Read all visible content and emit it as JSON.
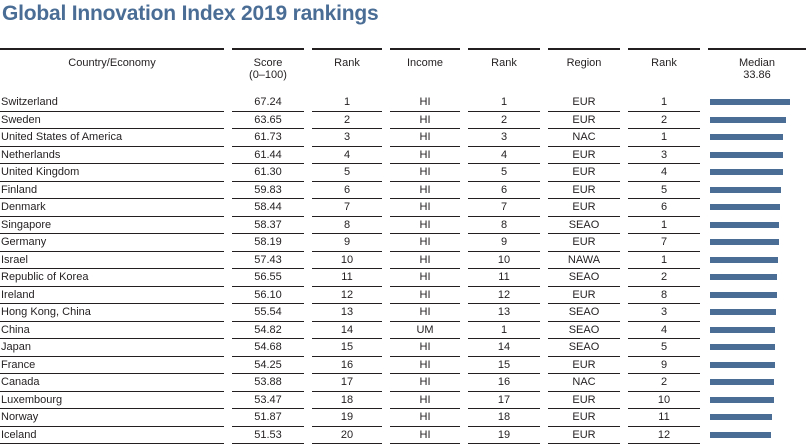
{
  "title": "Global Innovation Index 2019 rankings",
  "headers": {
    "country": "Country/Economy",
    "score_line1": "Score",
    "score_line2": "(0–100)",
    "rank": "Rank",
    "income": "Income",
    "rank_income": "Rank",
    "region": "Region",
    "rank_region": "Rank",
    "median_label": "Median",
    "median_value": "33.86"
  },
  "colors": {
    "title": "#4a6d96",
    "bar": "#4a6d96",
    "rules": "#231f20"
  },
  "chart_data": {
    "type": "bar",
    "median": 33.86,
    "categories": [
      "Switzerland",
      "Sweden",
      "United States of America",
      "Netherlands",
      "United Kingdom",
      "Finland",
      "Denmark",
      "Singapore",
      "Germany",
      "Israel",
      "Republic of Korea",
      "Ireland",
      "Hong Kong, China",
      "China",
      "Japan",
      "France",
      "Canada",
      "Luxembourg",
      "Norway",
      "Iceland"
    ],
    "values": [
      67.24,
      63.65,
      61.73,
      61.44,
      61.3,
      59.83,
      58.44,
      58.37,
      58.19,
      57.43,
      56.55,
      56.1,
      55.54,
      54.82,
      54.68,
      54.25,
      53.88,
      53.47,
      51.87,
      51.53
    ]
  },
  "rows": [
    {
      "country": "Switzerland",
      "score": "67.24",
      "rank": "1",
      "income": "HI",
      "income_rank": "1",
      "region": "EUR",
      "region_rank": "1"
    },
    {
      "country": "Sweden",
      "score": "63.65",
      "rank": "2",
      "income": "HI",
      "income_rank": "2",
      "region": "EUR",
      "region_rank": "2"
    },
    {
      "country": "United States of America",
      "score": "61.73",
      "rank": "3",
      "income": "HI",
      "income_rank": "3",
      "region": "NAC",
      "region_rank": "1"
    },
    {
      "country": "Netherlands",
      "score": "61.44",
      "rank": "4",
      "income": "HI",
      "income_rank": "4",
      "region": "EUR",
      "region_rank": "3"
    },
    {
      "country": "United Kingdom",
      "score": "61.30",
      "rank": "5",
      "income": "HI",
      "income_rank": "5",
      "region": "EUR",
      "region_rank": "4"
    },
    {
      "country": "Finland",
      "score": "59.83",
      "rank": "6",
      "income": "HI",
      "income_rank": "6",
      "region": "EUR",
      "region_rank": "5"
    },
    {
      "country": "Denmark",
      "score": "58.44",
      "rank": "7",
      "income": "HI",
      "income_rank": "7",
      "region": "EUR",
      "region_rank": "6"
    },
    {
      "country": "Singapore",
      "score": "58.37",
      "rank": "8",
      "income": "HI",
      "income_rank": "8",
      "region": "SEAO",
      "region_rank": "1"
    },
    {
      "country": "Germany",
      "score": "58.19",
      "rank": "9",
      "income": "HI",
      "income_rank": "9",
      "region": "EUR",
      "region_rank": "7"
    },
    {
      "country": "Israel",
      "score": "57.43",
      "rank": "10",
      "income": "HI",
      "income_rank": "10",
      "region": "NAWA",
      "region_rank": "1"
    },
    {
      "country": "Republic of Korea",
      "score": "56.55",
      "rank": "11",
      "income": "HI",
      "income_rank": "11",
      "region": "SEAO",
      "region_rank": "2"
    },
    {
      "country": "Ireland",
      "score": "56.10",
      "rank": "12",
      "income": "HI",
      "income_rank": "12",
      "region": "EUR",
      "region_rank": "8"
    },
    {
      "country": "Hong Kong, China",
      "score": "55.54",
      "rank": "13",
      "income": "HI",
      "income_rank": "13",
      "region": "SEAO",
      "region_rank": "3"
    },
    {
      "country": "China",
      "score": "54.82",
      "rank": "14",
      "income": "UM",
      "income_rank": "1",
      "region": "SEAO",
      "region_rank": "4"
    },
    {
      "country": "Japan",
      "score": "54.68",
      "rank": "15",
      "income": "HI",
      "income_rank": "14",
      "region": "SEAO",
      "region_rank": "5"
    },
    {
      "country": "France",
      "score": "54.25",
      "rank": "16",
      "income": "HI",
      "income_rank": "15",
      "region": "EUR",
      "region_rank": "9"
    },
    {
      "country": "Canada",
      "score": "53.88",
      "rank": "17",
      "income": "HI",
      "income_rank": "16",
      "region": "NAC",
      "region_rank": "2"
    },
    {
      "country": "Luxembourg",
      "score": "53.47",
      "rank": "18",
      "income": "HI",
      "income_rank": "17",
      "region": "EUR",
      "region_rank": "10"
    },
    {
      "country": "Norway",
      "score": "51.87",
      "rank": "19",
      "income": "HI",
      "income_rank": "18",
      "region": "EUR",
      "region_rank": "11"
    },
    {
      "country": "Iceland",
      "score": "51.53",
      "rank": "20",
      "income": "HI",
      "income_rank": "19",
      "region": "EUR",
      "region_rank": "12"
    }
  ]
}
